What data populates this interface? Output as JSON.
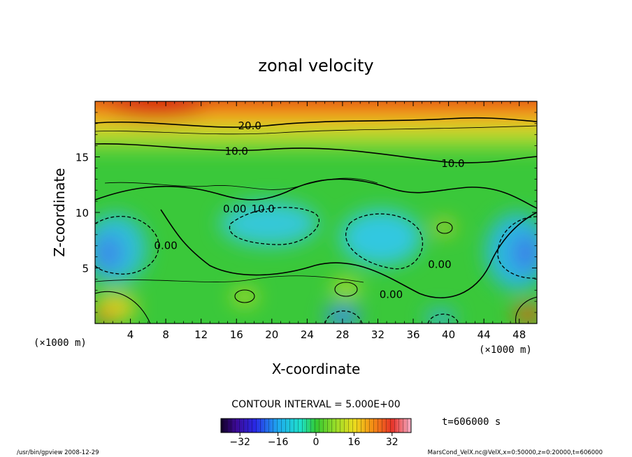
{
  "chart_data": {
    "type": "heatmap",
    "title": "zonal velocity",
    "xlabel": "X-coordinate",
    "ylabel": "Z-coordinate",
    "x_unit_label": "(×1000 m)",
    "x_unit_label_right": "(×1000 m)",
    "xlim": [
      0,
      50
    ],
    "ylim": [
      0,
      20
    ],
    "x_ticks": [
      "4",
      "8",
      "12",
      "16",
      "20",
      "24",
      "28",
      "32",
      "36",
      "40",
      "44",
      "48"
    ],
    "y_ticks": [
      "5",
      "10",
      "15"
    ],
    "contour_interval_text": "CONTOUR INTERVAL = 5.000E+00",
    "contour_labels": [
      {
        "text": "20.0",
        "x": 17.5,
        "y": 17.8
      },
      {
        "text": "10.0",
        "x": 16.0,
        "y": 15.5
      },
      {
        "text": "10.0",
        "x": 40.5,
        "y": 14.4
      },
      {
        "text": "0.00",
        "x": 15.8,
        "y": 10.3
      },
      {
        "text": "10.0",
        "x": 19.0,
        "y": 10.3
      },
      {
        "text": "0.00",
        "x": 8.0,
        "y": 7.0
      },
      {
        "text": "0.00",
        "x": 39.0,
        "y": 5.3
      },
      {
        "text": "0.00",
        "x": 33.5,
        "y": 2.6
      }
    ],
    "colorbar": {
      "range": [
        -40,
        40
      ],
      "tick_labels": [
        "−32",
        "−16",
        "0",
        "16",
        "32"
      ],
      "tick_values": [
        -32,
        -16,
        0,
        16,
        32
      ]
    },
    "time_label": "t=606000 s"
  },
  "footer": {
    "left": "/usr/bin/gpview  2008-12-29",
    "right": "MarsCond_VelX.nc@VelX,x=0:50000,z=0:20000,t=606000"
  },
  "colors": {
    "strong_negative": "#3a7fe8",
    "weak_negative": "#25d8d8",
    "zero": "#3ac83a",
    "weak_positive": "#d8e020",
    "strong_positive": "#e84018"
  }
}
